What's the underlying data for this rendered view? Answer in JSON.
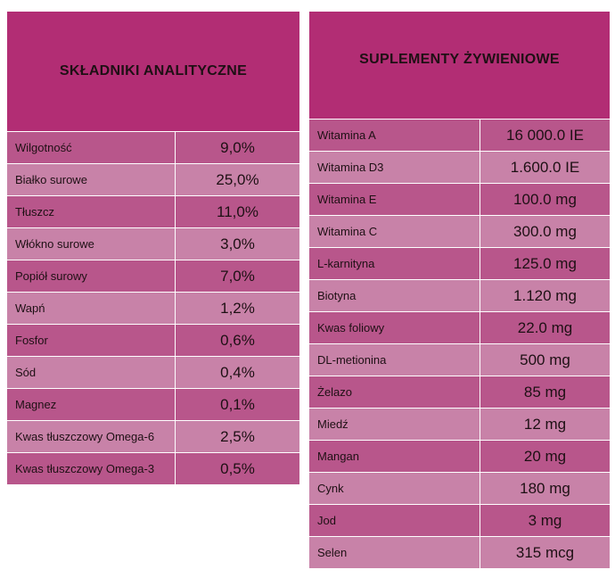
{
  "left_table": {
    "title": "SKŁADNIKI ANALITYCZNE",
    "rows": [
      {
        "name": "Wilgotność",
        "value": "9,0%"
      },
      {
        "name": "Białko surowe",
        "value": "25,0%"
      },
      {
        "name": "Tłuszcz",
        "value": "11,0%"
      },
      {
        "name": "Włókno surowe",
        "value": "3,0%"
      },
      {
        "name": "Popiół surowy",
        "value": "7,0%"
      },
      {
        "name": "Wapń",
        "value": "1,2%"
      },
      {
        "name": "Fosfor",
        "value": "0,6%"
      },
      {
        "name": "Sód",
        "value": "0,4%"
      },
      {
        "name": "Magnez",
        "value": "0,1%"
      },
      {
        "name": "Kwas tłuszczowy Omega-6",
        "value": "2,5%"
      },
      {
        "name": "Kwas tłuszczowy Omega-3",
        "value": "0,5%"
      }
    ]
  },
  "right_table": {
    "title": "SUPLEMENTY ŻYWIENIOWE",
    "rows": [
      {
        "name": "Witamina A",
        "value": "16 000.0 IE"
      },
      {
        "name": "Witamina D3",
        "value": "1.600.0 IE"
      },
      {
        "name": "Witamina E",
        "value": "100.0 mg"
      },
      {
        "name": "Witamina C",
        "value": "300.0 mg"
      },
      {
        "name": "L-karnityna",
        "value": "125.0 mg"
      },
      {
        "name": "Biotyna",
        "value": "1.120 mg"
      },
      {
        "name": "Kwas foliowy",
        "value": "22.0 mg"
      },
      {
        "name": "DL-metionina",
        "value": "500 mg"
      },
      {
        "name": "Żelazo",
        "value": "85 mg"
      },
      {
        "name": "Miedź",
        "value": "12 mg"
      },
      {
        "name": "Mangan",
        "value": "20 mg"
      },
      {
        "name": "Cynk",
        "value": "180 mg"
      },
      {
        "name": "Jod",
        "value": "3 mg"
      },
      {
        "name": "Selen",
        "value": "315 mcg"
      }
    ]
  },
  "colors": {
    "header": "#b22d74",
    "row_dark": "#b8568b",
    "row_light": "#c882a8"
  }
}
